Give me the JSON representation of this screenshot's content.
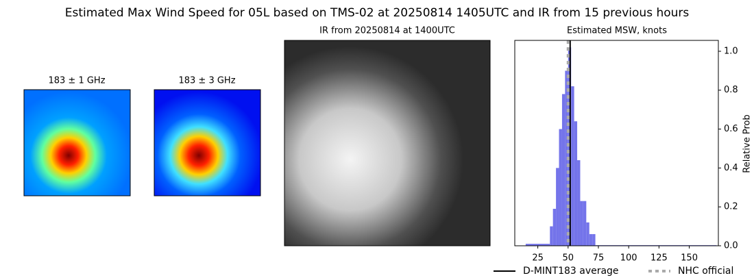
{
  "title": "Estimated Max Wind Speed for 05L based on TMS-02 at 20250814 1405UTC and IR from 15 previous hours",
  "panels": [
    {
      "title": "183 ± 1 GHz"
    },
    {
      "title": "183 ± 3 GHz"
    },
    {
      "title": "IR from 20250814 at 1400UTC"
    }
  ],
  "chart_data": {
    "type": "histogram",
    "title": "Estimated MSW, knots",
    "y_label": "Relative Prob",
    "bins": [
      15,
      35,
      37.5,
      40,
      42.5,
      45,
      47.5,
      50,
      52.5,
      55,
      57.5,
      60,
      62.5,
      65,
      67.5,
      70,
      72.5,
      172.5
    ],
    "values": [
      0.01,
      0.1,
      0.19,
      0.4,
      0.6,
      0.78,
      0.9,
      1.02,
      0.82,
      0.64,
      0.44,
      0.23,
      0.23,
      0.12,
      0.06,
      0.06,
      0.003
    ],
    "color": "#7474ea",
    "xlim": [
      6,
      174
    ],
    "ylim": [
      0,
      1.056
    ],
    "xticks": [
      25,
      50,
      75,
      100,
      125,
      150
    ],
    "yticks": [
      {
        "value": 0,
        "label": "0.0"
      },
      {
        "value": 0.2,
        "label": "0.2"
      },
      {
        "value": 0.4,
        "label": "0.4"
      },
      {
        "value": 0.6,
        "label": "0.6"
      },
      {
        "value": 0.8,
        "label": "0.8"
      },
      {
        "value": 1,
        "label": "1.0"
      }
    ],
    "reference_lines": [
      {
        "name": "D-MINT183 average",
        "x": 51.7,
        "color": "#000000",
        "dashed": false
      },
      {
        "name": "NHC official",
        "x": 50,
        "color": "#aaaaaa",
        "dashed": true
      }
    ]
  }
}
